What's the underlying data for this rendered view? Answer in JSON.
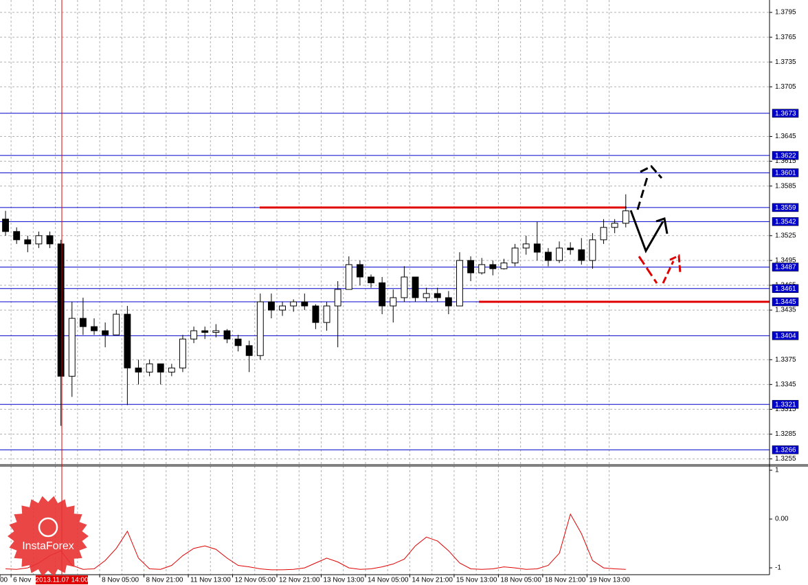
{
  "chart_data": {
    "type": "candlestick",
    "categories": [
      "00",
      "6 Nov",
      null,
      null,
      null,
      null,
      null,
      null,
      null,
      "8 Nov 05:00",
      null,
      null,
      null,
      "8 Nov 21:00",
      null,
      null,
      null,
      "11 Nov 13:00",
      null,
      null,
      null,
      "12 Nov 05:00",
      null,
      null,
      null,
      "12 Nov 21:00",
      null,
      null,
      null,
      "13 Nov 13:00",
      null,
      null,
      null,
      "14 Nov 05:00",
      null,
      null,
      null,
      "14 Nov 21:00",
      null,
      null,
      null,
      "15 Nov 13:00",
      null,
      null,
      null,
      "18 Nov 05:00",
      null,
      null,
      null,
      "18 Nov 21:00",
      null,
      null,
      null,
      "19 Nov 13:00",
      null,
      null,
      null
    ],
    "open": [
      1.3545,
      1.353,
      1.352,
      1.3515,
      1.3525,
      1.3515,
      1.3355,
      1.3425,
      1.3415,
      1.341,
      1.3405,
      1.343,
      1.3365,
      1.336,
      1.337,
      1.336,
      1.3365,
      1.34,
      1.341,
      1.3408,
      1.341,
      1.34,
      1.3392,
      1.338,
      1.3445,
      1.3435,
      1.344,
      1.3445,
      1.344,
      1.342,
      1.344,
      1.346,
      1.349,
      1.3475,
      1.3468,
      1.344,
      1.345,
      1.3475,
      1.345,
      1.3455,
      1.345,
      1.344,
      1.3495,
      1.348,
      1.349,
      1.3485,
      1.3492,
      1.351,
      1.3515,
      1.3505,
      1.3495,
      1.351,
      1.3508,
      1.3495,
      1.352,
      1.3535,
      1.354
    ],
    "high": [
      1.3555,
      1.3535,
      1.3525,
      1.353,
      1.353,
      1.352,
      1.3445,
      1.345,
      1.3425,
      1.342,
      1.3435,
      1.344,
      1.3375,
      1.3375,
      1.337,
      1.337,
      1.3405,
      1.3415,
      1.3415,
      1.3418,
      1.3412,
      1.3405,
      1.3398,
      1.3455,
      1.3455,
      1.3445,
      1.3448,
      1.3455,
      1.3442,
      1.3445,
      1.347,
      1.35,
      1.3495,
      1.3478,
      1.3475,
      1.346,
      1.3488,
      1.3475,
      1.3462,
      1.3462,
      1.3458,
      1.3505,
      1.35,
      1.3498,
      1.3495,
      1.3497,
      1.3515,
      1.3525,
      1.3542,
      1.351,
      1.3518,
      1.3517,
      1.3522,
      1.3528,
      1.3545,
      1.3545,
      1.3575
    ],
    "low": [
      1.3525,
      1.3515,
      1.3505,
      1.351,
      1.351,
      1.3295,
      1.333,
      1.3405,
      1.3405,
      1.339,
      1.3405,
      1.332,
      1.3345,
      1.3355,
      1.3345,
      1.3355,
      1.336,
      1.3395,
      1.34,
      1.3402,
      1.3395,
      1.3385,
      1.336,
      1.3375,
      1.3425,
      1.3428,
      1.3433,
      1.3435,
      1.3412,
      1.341,
      1.339,
      1.346,
      1.3465,
      1.3462,
      1.343,
      1.342,
      1.3445,
      1.3445,
      1.3445,
      1.3445,
      1.343,
      1.344,
      1.347,
      1.3478,
      1.3477,
      1.3484,
      1.3488,
      1.3502,
      1.3495,
      1.3488,
      1.3492,
      1.3502,
      1.349,
      1.3485,
      1.3515,
      1.3528,
      1.3535
    ],
    "close": [
      1.353,
      1.352,
      1.3515,
      1.3525,
      1.3515,
      1.3355,
      1.3425,
      1.3415,
      1.341,
      1.3405,
      1.343,
      1.3365,
      1.336,
      1.337,
      1.336,
      1.3365,
      1.34,
      1.341,
      1.3408,
      1.341,
      1.34,
      1.3392,
      1.338,
      1.3445,
      1.3435,
      1.344,
      1.3445,
      1.344,
      1.342,
      1.344,
      1.346,
      1.349,
      1.3475,
      1.3468,
      1.344,
      1.345,
      1.3475,
      1.345,
      1.3455,
      1.345,
      1.344,
      1.3495,
      1.348,
      1.349,
      1.3485,
      1.3492,
      1.351,
      1.3515,
      1.3505,
      1.3495,
      1.351,
      1.3508,
      1.3495,
      1.352,
      1.3535,
      1.354,
      1.3555
    ],
    "ylim": [
      1.3248,
      1.381
    ],
    "yticks": [
      1.3795,
      1.3765,
      1.3735,
      1.3705,
      1.3645,
      1.3615,
      1.3585,
      1.3525,
      1.3495,
      1.3465,
      1.3435,
      1.3375,
      1.3345,
      1.3315,
      1.3285,
      1.3255
    ],
    "grid": true,
    "levels": [
      1.3673,
      1.3622,
      1.3601,
      1.3559,
      1.3542,
      1.3487,
      1.3461,
      1.3445,
      1.3404,
      1.3321,
      1.3266
    ],
    "level_color": "#0000cc",
    "trend_lines": [
      1.3559,
      1.3445
    ],
    "trend_color": "#e00000",
    "cursor_label": "2013.11.07 14:00",
    "indicator": {
      "type": "line",
      "color": "#e00000",
      "values": [
        -1.02,
        -1.03,
        -1.0,
        -0.9,
        -0.75,
        -0.65,
        -0.95,
        -1.03,
        -1.02,
        -0.85,
        -0.6,
        -0.25,
        -0.8,
        -1.02,
        -1.03,
        -0.95,
        -0.75,
        -0.6,
        -0.55,
        -0.62,
        -0.8,
        -0.95,
        -0.98,
        -1.02,
        -1.04,
        -1.04,
        -1.03,
        -1.0,
        -0.9,
        -0.8,
        -0.88,
        -1.0,
        -1.03,
        -1.02,
        -0.98,
        -0.92,
        -0.82,
        -0.55,
        -0.37,
        -0.45,
        -0.65,
        -0.9,
        -1.02,
        -1.03,
        -1.02,
        -0.98,
        -1.0,
        -1.03,
        -1.02,
        -0.95,
        -0.7,
        0.1,
        -0.3,
        -0.85,
        -1.0,
        -1.02,
        -1.03
      ],
      "ylim": [
        -1.14,
        1.085
      ],
      "yticks": [
        1,
        {
          "value": 0,
          "label": "0.00"
        },
        -1
      ]
    }
  },
  "logo": "InstaForex"
}
